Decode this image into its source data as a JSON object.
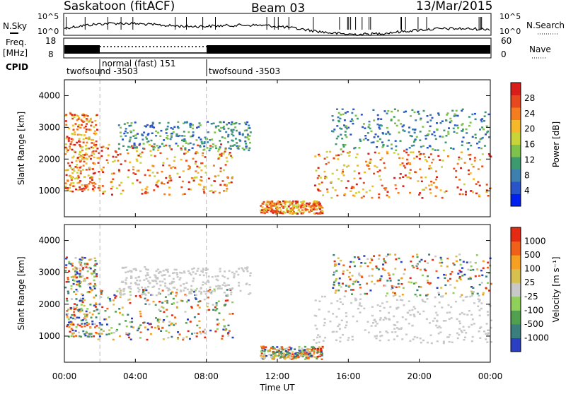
{
  "header": {
    "station": "Saskatoon (fitACF)",
    "beam": "Beam 03",
    "date": "13/Mar/2015"
  },
  "panels": {
    "nsky_label": "N.Sky",
    "nsky_ticks": [
      "10^5",
      "10^0"
    ],
    "nsearch_label": "N.Search",
    "nsearch_ticks": [
      "10^5",
      "10^0"
    ],
    "freq_label_1": "Freq.",
    "freq_label_2": "[MHz]",
    "freq_ticks": [
      "18",
      "8"
    ],
    "nave_label": "Nave",
    "nave_ticks": [
      "60",
      "0"
    ],
    "cpid_label": "CPID",
    "cpid_entries": [
      {
        "text": "twofsound -3503"
      },
      {
        "text": "normal (fast) 151"
      },
      {
        "text": "twofsound -3503"
      }
    ]
  },
  "chart_data": [
    {
      "type": "heatmap",
      "title": "",
      "xlabel": "Time UT",
      "ylabel": "Slant Range [km]",
      "xlim": [
        0,
        24
      ],
      "ylim": [
        180,
        4500
      ],
      "x_tick_labels": [
        "00:00",
        "04:00",
        "08:00",
        "12:00",
        "16:00",
        "20:00",
        "00:00"
      ],
      "y_tick_labels": [
        "1000",
        "2000",
        "3000",
        "4000"
      ],
      "colorbar": {
        "label": "Power [dB]",
        "range": [
          0,
          30
        ],
        "tick_labels": [
          "28",
          "24",
          "20",
          "16",
          "12",
          "8",
          "4"
        ],
        "colors": [
          "#0020f0",
          "#2a55c8",
          "#3d7fae",
          "#3d9a6e",
          "#7fc24b",
          "#c8d437",
          "#f5b82a",
          "#f37d1f",
          "#e8481d",
          "#d81e1a"
        ]
      },
      "dashed_time_markers": [
        2.0,
        8.0
      ],
      "scatter_regions": [
        {
          "t0": 0.0,
          "t1": 1.8,
          "r0": 1000,
          "r1": 3500,
          "level": "strong"
        },
        {
          "t0": 1.8,
          "t1": 9.5,
          "r0": 900,
          "r1": 2500,
          "level": "strong"
        },
        {
          "t0": 3.0,
          "t1": 10.5,
          "r0": 2300,
          "r1": 3200,
          "level": "weak"
        },
        {
          "t0": 11.0,
          "t1": 14.5,
          "r0": 300,
          "r1": 700,
          "level": "strong"
        },
        {
          "t0": 14.0,
          "t1": 24.0,
          "r0": 800,
          "r1": 2300,
          "level": "strong"
        },
        {
          "t0": 15.0,
          "t1": 24.0,
          "r0": 2300,
          "r1": 3600,
          "level": "weak"
        }
      ]
    },
    {
      "type": "heatmap",
      "title": "",
      "xlabel": "Time UT",
      "ylabel": "Slant Range [km]",
      "xlim": [
        0,
        24
      ],
      "ylim": [
        180,
        4500
      ],
      "x_tick_labels": [
        "00:00",
        "04:00",
        "08:00",
        "12:00",
        "16:00",
        "20:00",
        "00:00"
      ],
      "y_tick_labels": [
        "1000",
        "2000",
        "3000",
        "4000"
      ],
      "colorbar": {
        "label": "Velocity [m s^-1]",
        "range": [
          -1100,
          1100
        ],
        "tick_labels": [
          "1000",
          "500",
          "100",
          "25",
          "-25",
          "-100",
          "-500",
          "-1000"
        ],
        "colors": [
          "#2a3fc2",
          "#3a7f7d",
          "#50a050",
          "#8fd05a",
          "#c8c8c8",
          "#d8c050",
          "#f5a020",
          "#f06018",
          "#e52a14"
        ]
      },
      "dashed_time_markers": [
        2.0,
        8.0
      ],
      "scatter_regions": [
        {
          "t0": 0.0,
          "t1": 1.8,
          "r0": 1000,
          "r1": 3500,
          "level": "moving"
        },
        {
          "t0": 1.8,
          "t1": 9.5,
          "r0": 900,
          "r1": 2500,
          "level": "moving"
        },
        {
          "t0": 3.0,
          "t1": 10.5,
          "r0": 2300,
          "r1": 3200,
          "level": "ground"
        },
        {
          "t0": 11.0,
          "t1": 14.5,
          "r0": 300,
          "r1": 700,
          "level": "moving"
        },
        {
          "t0": 14.0,
          "t1": 24.0,
          "r0": 800,
          "r1": 2300,
          "level": "ground"
        },
        {
          "t0": 15.0,
          "t1": 24.0,
          "r0": 2300,
          "r1": 3600,
          "level": "moving"
        }
      ]
    }
  ]
}
